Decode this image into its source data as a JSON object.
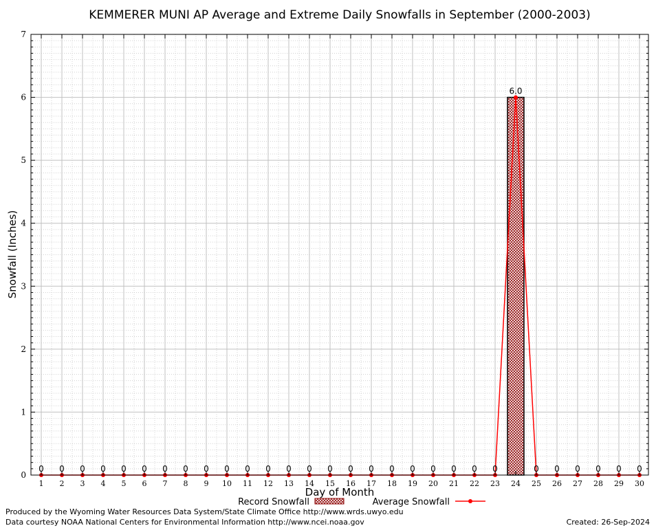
{
  "chart_data": {
    "type": "bar",
    "title": "KEMMERER MUNI AP Average and Extreme Daily Snowfalls in September (2000-2003)",
    "xlabel": "Day of Month",
    "ylabel": "Snowfall (Inches)",
    "ylim": [
      0,
      7
    ],
    "yticks": [
      "0",
      "1",
      "2",
      "3",
      "4",
      "5",
      "6",
      "7"
    ],
    "categories": [
      "1",
      "2",
      "3",
      "4",
      "5",
      "6",
      "7",
      "8",
      "9",
      "10",
      "11",
      "12",
      "13",
      "14",
      "15",
      "16",
      "17",
      "18",
      "19",
      "20",
      "21",
      "22",
      "23",
      "24",
      "25",
      "26",
      "27",
      "28",
      "29",
      "30"
    ],
    "series": [
      {
        "name": "Record Snowfall",
        "kind": "bar",
        "color": "#8b0000",
        "values": [
          0,
          0,
          0,
          0,
          0,
          0,
          0,
          0,
          0,
          0,
          0,
          0,
          0,
          0,
          0,
          0,
          0,
          0,
          0,
          0,
          0,
          0,
          0,
          6.0,
          0,
          0,
          0,
          0,
          0,
          0
        ]
      },
      {
        "name": "Average Snowfall",
        "kind": "line",
        "color": "#ff0000",
        "values": [
          0,
          0,
          0,
          0,
          0,
          0,
          0,
          0,
          0,
          0,
          0,
          0,
          0,
          0,
          0,
          0,
          0,
          0,
          0,
          0,
          0,
          0,
          0,
          6.0,
          0,
          0,
          0,
          0,
          0,
          0
        ]
      }
    ],
    "data_labels": [
      "0",
      "0",
      "0",
      "0",
      "0",
      "0",
      "0",
      "0",
      "0",
      "0",
      "0",
      "0",
      "0",
      "0",
      "0",
      "0",
      "0",
      "0",
      "0",
      "0",
      "0",
      "0",
      "0",
      "6.0",
      "0",
      "0",
      "0",
      "0",
      "0",
      "0"
    ],
    "grid": true,
    "legend_position": "bottom-center"
  },
  "footer": {
    "produced_by": "Produced by the Wyoming Water Resources Data System/State Climate Office http://www.wrds.uwyo.edu",
    "courtesy": "Data courtesy NOAA National Centers for Environmental Information http://www.ncei.noaa.gov",
    "created": "Created:  26-Sep-2024"
  }
}
